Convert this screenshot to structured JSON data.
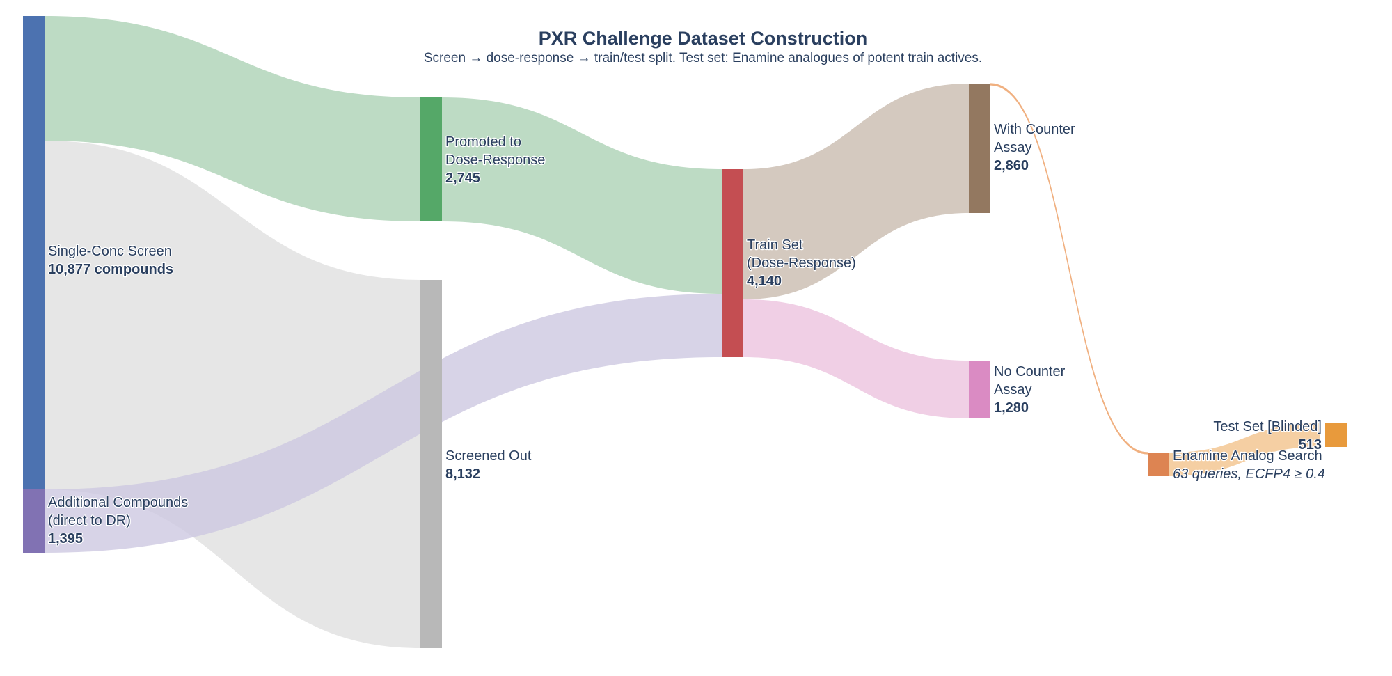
{
  "title": "PXR Challenge Dataset Construction",
  "subtitle": "Screen → dose-response → train/test split. Test set: Enamine analogues of potent train actives.",
  "colors": {
    "single_conc": "#4c72b0",
    "additional": "#8172b3",
    "promoted": "#55a868",
    "screened_out": "#b8b8b8",
    "train": "#c44e52",
    "with_counter": "#937860",
    "no_counter": "#da8bc3",
    "enamine": "#dd8452",
    "test": "#e89a3c",
    "link_promoted": "#bddbc4",
    "link_screened": "#e6e6e6",
    "link_additional": "#ccc6e0",
    "link_with_counter": "#d4c9bf",
    "link_no_counter": "#f0cfe5",
    "link_enamine": "#f0b080",
    "link_test": "#f5cfa3"
  },
  "chart_data": {
    "type": "sankey",
    "title": "PXR Challenge Dataset Construction",
    "subtitle": "Screen → dose-response → train/test split. Test set: Enamine analogues of potent train actives.",
    "nodes": [
      {
        "id": "single_conc",
        "lines": [
          "Single-Conc Screen"
        ],
        "value_label": "10,877 compounds",
        "value": 10877
      },
      {
        "id": "additional",
        "lines": [
          "Additional Compounds",
          "(direct to DR)"
        ],
        "value_label": "1,395",
        "value": 1395
      },
      {
        "id": "promoted",
        "lines": [
          "Promoted to",
          "Dose-Response"
        ],
        "value_label": "2,745",
        "value": 2745
      },
      {
        "id": "screened_out",
        "lines": [
          "Screened Out"
        ],
        "value_label": "8,132",
        "value": 8132
      },
      {
        "id": "train",
        "lines": [
          "Train Set",
          "(Dose-Response)"
        ],
        "value_label": "4,140",
        "value": 4140
      },
      {
        "id": "with_counter",
        "lines": [
          "With Counter",
          "Assay"
        ],
        "value_label": "2,860",
        "value": 2860
      },
      {
        "id": "no_counter",
        "lines": [
          "No Counter",
          "Assay"
        ],
        "value_label": "1,280",
        "value": 1280
      },
      {
        "id": "enamine",
        "lines": [
          "Enamine Analog Search"
        ],
        "value_label": "63 queries, ECFP4 ≥ 0.4",
        "value_italic": true,
        "value": 63
      },
      {
        "id": "test",
        "lines": [
          "Test Set [Blinded]"
        ],
        "value_label": "513",
        "value": 513
      }
    ],
    "links": [
      {
        "source": "single_conc",
        "target": "promoted",
        "value": 2745
      },
      {
        "source": "single_conc",
        "target": "screened_out",
        "value": 8132
      },
      {
        "source": "additional",
        "target": "train",
        "value": 1395
      },
      {
        "source": "promoted",
        "target": "train",
        "value": 2745
      },
      {
        "source": "train",
        "target": "with_counter",
        "value": 2860
      },
      {
        "source": "train",
        "target": "no_counter",
        "value": 1280
      },
      {
        "source": "with_counter",
        "target": "enamine",
        "value": 63
      },
      {
        "source": "enamine",
        "target": "test",
        "value": 513
      }
    ]
  }
}
